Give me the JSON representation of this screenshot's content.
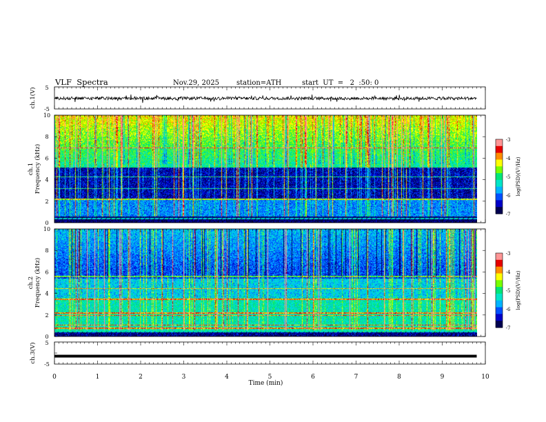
{
  "header": {
    "title": "VLF  Spectra",
    "date": "Nov.29, 2025",
    "station": "station=ATH",
    "start": "start  UT  =   2  :50: 0"
  },
  "chart_data": [
    {
      "type": "line",
      "name": "ch1-waveform",
      "ylabel": "ch.1(V)",
      "ylim": [
        -5,
        5
      ],
      "yticks": [
        "5",
        "-5"
      ],
      "description_values": {
        "typical_range_V": [
          -1.5,
          0.5
        ],
        "mean_V": -0.2
      }
    },
    {
      "type": "heatmap",
      "name": "ch1-spectrogram",
      "ylabel_top": "ch.1",
      "ylabel": "Frequency  (kHz)",
      "ylim": [
        0,
        10
      ],
      "yticks": [
        "0",
        "2",
        "4",
        "6",
        "8",
        "10"
      ],
      "xlim": [
        0,
        10
      ],
      "colorbar": {
        "label": "log(PSD)(V²/Hz)",
        "range": [
          -7,
          -3
        ],
        "ticks": [
          "-3",
          "-4",
          "-5",
          "-6",
          "-7"
        ]
      }
    },
    {
      "type": "heatmap",
      "name": "ch2-spectrogram",
      "ylabel_top": "ch.2",
      "ylabel": "Frequency  (kHz)",
      "ylim": [
        0,
        10
      ],
      "yticks": [
        "0",
        "2",
        "4",
        "6",
        "8",
        "10"
      ],
      "xlim": [
        0,
        10
      ],
      "colorbar": {
        "label": "log(PSD)(V²/Hz)",
        "range": [
          -7,
          -3
        ],
        "ticks": [
          "-3",
          "-4",
          "-5",
          "-6",
          "-7"
        ]
      }
    },
    {
      "type": "line",
      "name": "ch3-waveform",
      "ylabel": "ch.3(V)",
      "ylim": [
        -5,
        5
      ],
      "yticks": [
        "5",
        "-5"
      ],
      "description_values": {
        "constant_V": -1.4
      }
    }
  ],
  "xaxis": {
    "label": "Time  (min)",
    "range": [
      0,
      10
    ],
    "ticks": [
      "0",
      "1",
      "2",
      "3",
      "4",
      "5",
      "6",
      "7",
      "8",
      "9",
      "10"
    ],
    "data_end": 9.8
  },
  "colors": {
    "palette": [
      "#000050",
      "#0000c8",
      "#0050ff",
      "#00b4ff",
      "#00e6c8",
      "#00e678",
      "#78ff00",
      "#ffff00",
      "#ff8c00",
      "#e60000",
      "#ff9696",
      "#ffffff"
    ]
  }
}
